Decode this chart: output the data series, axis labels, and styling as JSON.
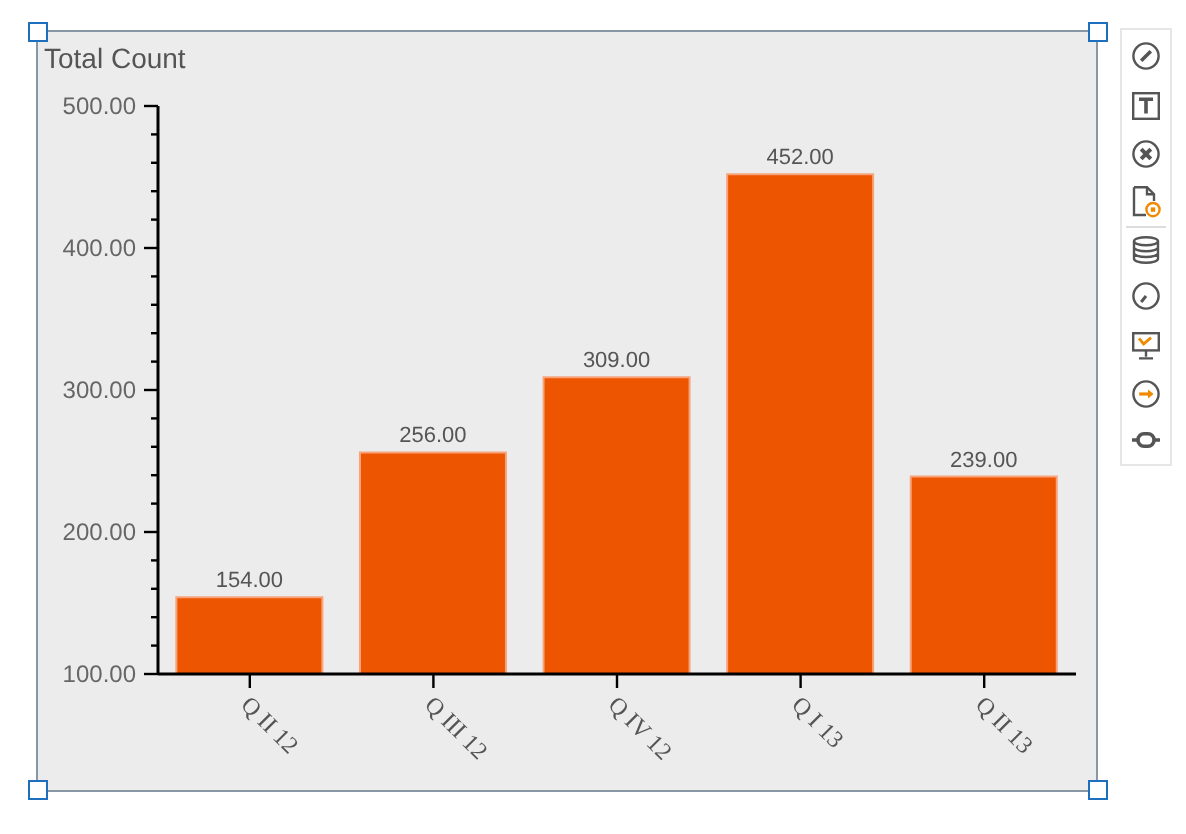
{
  "chart_data": {
    "type": "bar",
    "ylabel": "Total Count",
    "categories": [
      "Q II 12",
      "Q III 12",
      "Q IV 12",
      "Q I 13",
      "Q II 13"
    ],
    "values": [
      154,
      256,
      309,
      452,
      239
    ],
    "color": "#ee5500",
    "value_labels": [
      "154.00",
      "256.00",
      "309.00",
      "452.00",
      "239.00"
    ],
    "ylim": [
      100,
      500
    ],
    "yticks": [
      {
        "value": 100,
        "label": "100.00"
      },
      {
        "value": 120,
        "label": null
      },
      {
        "value": 140,
        "label": null
      },
      {
        "value": 160,
        "label": null
      },
      {
        "value": 180,
        "label": null
      },
      {
        "value": 200,
        "label": "200.00"
      },
      {
        "value": 220,
        "label": null
      },
      {
        "value": 240,
        "label": null
      },
      {
        "value": 260,
        "label": null
      },
      {
        "value": 280,
        "label": null
      },
      {
        "value": 300,
        "label": "300.00"
      },
      {
        "value": 320,
        "label": null
      },
      {
        "value": 340,
        "label": null
      },
      {
        "value": 360,
        "label": null
      },
      {
        "value": 380,
        "label": null
      },
      {
        "value": 400,
        "label": "400.00"
      },
      {
        "value": 420,
        "label": null
      },
      {
        "value": 440,
        "label": null
      },
      {
        "value": 460,
        "label": null
      },
      {
        "value": 480,
        "label": null
      },
      {
        "value": 500,
        "label": "500.00"
      }
    ]
  }
}
